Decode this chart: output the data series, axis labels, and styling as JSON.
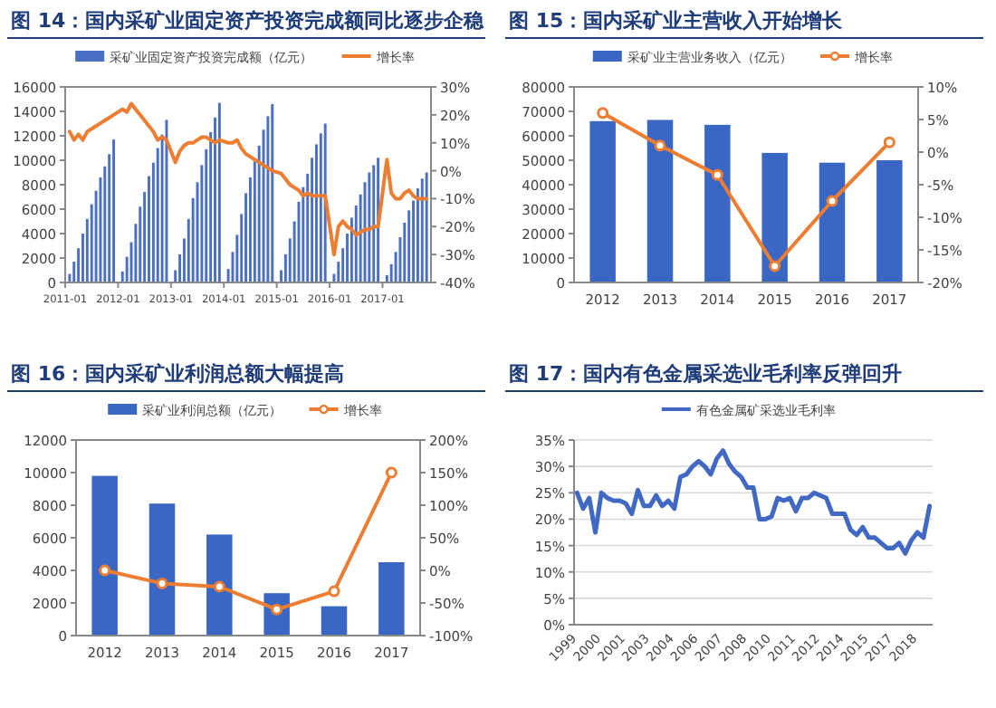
{
  "chart_data": [
    {
      "type": "bar",
      "title": "图 14：国内采矿业固定资产投资完成额同比逐步企稳",
      "legend": "top",
      "grid": false,
      "x": [
        "2011-02",
        "2011-03",
        "2011-04",
        "2011-05",
        "2011-06",
        "2011-07",
        "2011-08",
        "2011-09",
        "2011-10",
        "2011-11",
        "2011-12",
        "2012-02",
        "2012-03",
        "2012-04",
        "2012-05",
        "2012-06",
        "2012-07",
        "2012-08",
        "2012-09",
        "2012-10",
        "2012-11",
        "2012-12",
        "2013-02",
        "2013-03",
        "2013-04",
        "2013-05",
        "2013-06",
        "2013-07",
        "2013-08",
        "2013-09",
        "2013-10",
        "2013-11",
        "2013-12",
        "2014-02",
        "2014-03",
        "2014-04",
        "2014-05",
        "2014-06",
        "2014-07",
        "2014-08",
        "2014-09",
        "2014-10",
        "2014-11",
        "2014-12",
        "2015-02",
        "2015-03",
        "2015-04",
        "2015-05",
        "2015-06",
        "2015-07",
        "2015-08",
        "2015-09",
        "2015-10",
        "2015-11",
        "2015-12",
        "2016-02",
        "2016-03",
        "2016-04",
        "2016-05",
        "2016-06",
        "2016-07",
        "2016-08",
        "2016-09",
        "2016-10",
        "2016-11",
        "2016-12",
        "2017-02",
        "2017-03",
        "2017-04",
        "2017-05",
        "2017-06",
        "2017-07",
        "2017-08",
        "2017-09",
        "2017-10",
        "2017-11"
      ],
      "xlim": [
        "2011-01",
        "2017-12"
      ],
      "xticks": [
        "2011-01",
        "2012-01",
        "2013-01",
        "2014-01",
        "2015-01",
        "2016-01",
        "2017-01"
      ],
      "ylim": [
        0,
        16000
      ],
      "yticks": [
        0,
        2000,
        4000,
        6000,
        8000,
        10000,
        12000,
        14000,
        16000
      ],
      "y2lim": [
        -40,
        30
      ],
      "y2ticks": [
        {
          "value": -40,
          "label": "-40%"
        },
        {
          "value": -30,
          "label": "-30%"
        },
        {
          "value": -20,
          "label": "-20%"
        },
        {
          "value": -10,
          "label": "-10%"
        },
        {
          "value": 0,
          "label": "0%"
        },
        {
          "value": 10,
          "label": "10%"
        },
        {
          "value": 20,
          "label": "20%"
        },
        {
          "value": 30,
          "label": "30%"
        }
      ],
      "series": [
        {
          "name": "采矿业固定资产投资完成额（亿元）",
          "type": "bar",
          "color": "#4a6fc4",
          "values": [
            700,
            1700,
            2800,
            4000,
            5200,
            6400,
            7500,
            8600,
            9500,
            10500,
            11700,
            900,
            2100,
            3300,
            4800,
            6200,
            7400,
            8700,
            9800,
            11000,
            12100,
            13300,
            1000,
            2300,
            3600,
            5200,
            6900,
            8200,
            9600,
            10900,
            12300,
            13500,
            14700,
            1100,
            2500,
            3900,
            5600,
            7300,
            8600,
            9900,
            11200,
            12500,
            13600,
            14600,
            1000,
            2300,
            3600,
            5000,
            6600,
            7800,
            8900,
            10200,
            11300,
            12200,
            13000,
            700,
            1700,
            2800,
            4000,
            5300,
            6300,
            7200,
            8200,
            9000,
            9600,
            10200,
            600,
            1500,
            2500,
            3700,
            4900,
            5900,
            6700,
            7700,
            8500,
            9000
          ]
        },
        {
          "name": "增长率",
          "type": "line",
          "axis": "y2",
          "color": "#ed7d31",
          "values": [
            14,
            11,
            13,
            11,
            14,
            15,
            16,
            17,
            18,
            19,
            20,
            22,
            21,
            24,
            22,
            20,
            18,
            16,
            14,
            11,
            12,
            11,
            3,
            7,
            9,
            10,
            10,
            11,
            12,
            12,
            11,
            10,
            11,
            10,
            10,
            11,
            8,
            6,
            5,
            4,
            3,
            2,
            1,
            0,
            -1,
            -3,
            -5,
            -6,
            -7,
            -9,
            -8,
            -9,
            -9,
            -9,
            -9,
            -30,
            -20,
            -18,
            -20,
            -21,
            -23,
            -22,
            -21,
            -21,
            -20,
            -20,
            4,
            -8,
            -10,
            -10,
            -8,
            -7,
            -9,
            -10,
            -10,
            -10
          ]
        }
      ]
    },
    {
      "type": "bar",
      "title": "图 15：国内采矿业主营收入开始增长",
      "legend": "top",
      "grid": false,
      "categories": [
        "2012",
        "2013",
        "2014",
        "2015",
        "2016",
        "2017"
      ],
      "ylim": [
        0,
        80000
      ],
      "yticks": [
        0,
        10000,
        20000,
        30000,
        40000,
        50000,
        60000,
        70000,
        80000
      ],
      "y2lim": [
        -20,
        10
      ],
      "y2ticks": [
        {
          "value": -20,
          "label": "-20%"
        },
        {
          "value": -15,
          "label": "-15%"
        },
        {
          "value": -10,
          "label": "-10%"
        },
        {
          "value": -5,
          "label": "-5%"
        },
        {
          "value": 0,
          "label": "0%"
        },
        {
          "value": 5,
          "label": "5%"
        },
        {
          "value": 10,
          "label": "10%"
        }
      ],
      "series": [
        {
          "name": "采矿业主营业务收入（亿元）",
          "type": "bar",
          "color": "#3a66c4",
          "values": [
            66000,
            66500,
            64500,
            53000,
            49000,
            50000
          ]
        },
        {
          "name": "增长率",
          "type": "line",
          "axis": "y2",
          "color": "#ed7d31",
          "marker": "circle",
          "values": [
            6,
            1,
            -3.5,
            -17.5,
            -7.5,
            1.5
          ]
        }
      ]
    },
    {
      "type": "bar",
      "title": "图 16：国内采矿业利润总额大幅提高",
      "legend": "top",
      "grid": false,
      "categories": [
        "2012",
        "2013",
        "2014",
        "2015",
        "2016",
        "2017"
      ],
      "ylim": [
        0,
        12000
      ],
      "yticks": [
        0,
        2000,
        4000,
        6000,
        8000,
        10000,
        12000
      ],
      "y2lim": [
        -100,
        200
      ],
      "y2ticks": [
        {
          "value": -100,
          "label": "-100%"
        },
        {
          "value": -50,
          "label": "-50%"
        },
        {
          "value": 0,
          "label": "0%"
        },
        {
          "value": 50,
          "label": "50%"
        },
        {
          "value": 100,
          "label": "100%"
        },
        {
          "value": 150,
          "label": "150%"
        },
        {
          "value": 200,
          "label": "200%"
        }
      ],
      "series": [
        {
          "name": "采矿业利润总额（亿元）",
          "type": "bar",
          "color": "#3a66c4",
          "values": [
            9800,
            8100,
            6200,
            2600,
            1800,
            4500
          ]
        },
        {
          "name": "增长率",
          "type": "line",
          "axis": "y2",
          "color": "#ed7d31",
          "marker": "circle",
          "values": [
            0,
            -20,
            -25,
            -60,
            -32,
            150
          ]
        }
      ]
    },
    {
      "type": "line",
      "title": "图 17：国内有色金属采选业毛利率反弹回升",
      "legend": "top",
      "grid": "y",
      "categories": [
        "1999",
        null,
        null,
        null,
        "2000",
        null,
        null,
        null,
        "2001",
        null,
        null,
        null,
        "2003",
        null,
        null,
        null,
        "2004",
        null,
        null,
        null,
        "2006",
        null,
        null,
        null,
        "2007",
        null,
        null,
        null,
        "2008",
        null,
        null,
        null,
        "2010",
        null,
        null,
        null,
        "2011",
        null,
        null,
        null,
        "2012",
        null,
        null,
        null,
        "2014",
        null,
        null,
        null,
        "2015",
        null,
        null,
        null,
        "2017",
        null,
        null,
        null,
        "2018",
        null,
        null
      ],
      "ylim": [
        0,
        35
      ],
      "yticks": [
        {
          "value": 0,
          "label": "0%"
        },
        {
          "value": 5,
          "label": "5%"
        },
        {
          "value": 10,
          "label": "10%"
        },
        {
          "value": 15,
          "label": "15%"
        },
        {
          "value": 20,
          "label": "20%"
        },
        {
          "value": 25,
          "label": "25%"
        },
        {
          "value": 30,
          "label": "30%"
        },
        {
          "value": 35,
          "label": "35%"
        }
      ],
      "series": [
        {
          "name": "有色金属矿采选业毛利率",
          "type": "line",
          "color": "#4169c4",
          "values": [
            25,
            22,
            24,
            17.5,
            25,
            24,
            23.5,
            23.5,
            23,
            21,
            25.5,
            22.5,
            22.5,
            24.5,
            22.5,
            23.5,
            22,
            28,
            28.5,
            30,
            31,
            30,
            28.5,
            31.5,
            33,
            30.5,
            29,
            28,
            26,
            26,
            20,
            20,
            20.5,
            24,
            23.5,
            24,
            21.5,
            24,
            24,
            25,
            24.5,
            24,
            21,
            21,
            21,
            18,
            17,
            18.5,
            16.5,
            16.5,
            15.5,
            14.5,
            14.5,
            15.5,
            13.5,
            16,
            17.5,
            16.5,
            22.5
          ]
        }
      ]
    }
  ]
}
